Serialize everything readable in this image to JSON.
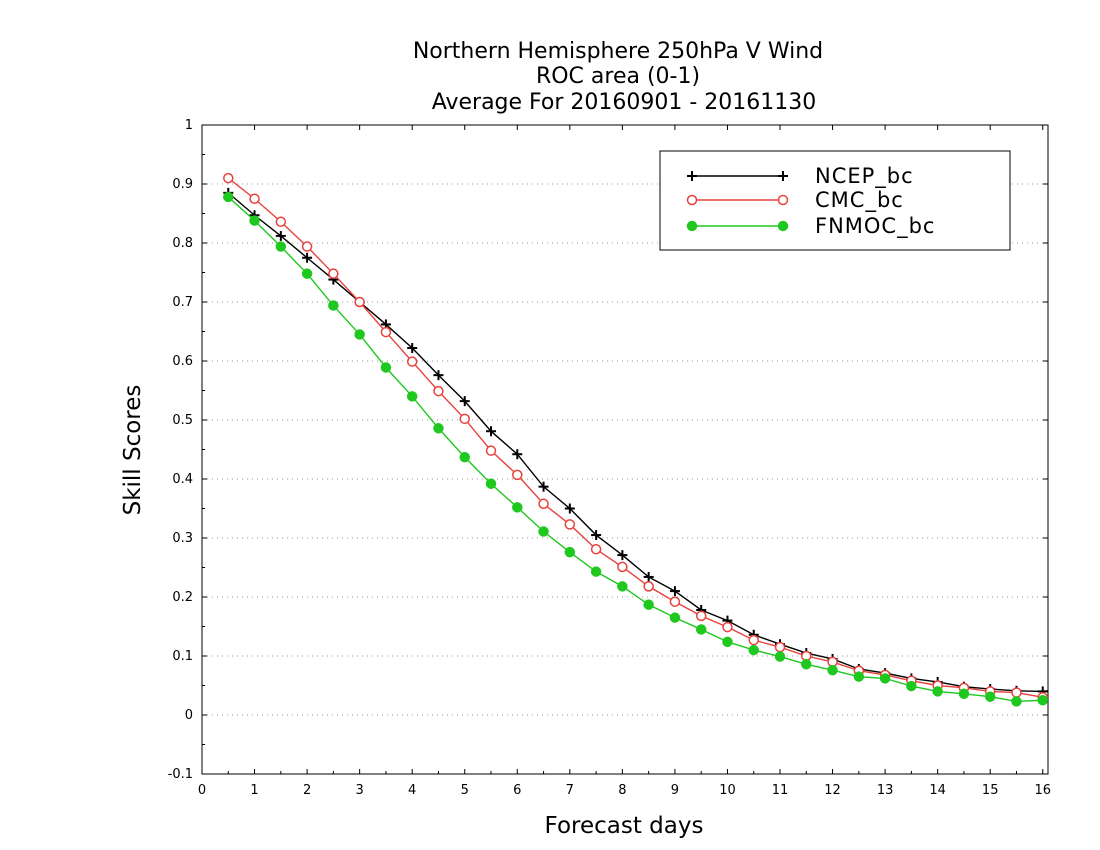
{
  "chart_data": {
    "type": "line",
    "title": [
      "Northern Hemisphere 250hPa V Wind",
      "ROC area (0-1)",
      "Average For 20160901 - 20161130"
    ],
    "xlabel": "Forecast days",
    "ylabel": "Skill Scores",
    "xlim": [
      0,
      16.1
    ],
    "ylim": [
      -0.1,
      1
    ],
    "xticks": [
      0,
      1,
      2,
      3,
      4,
      5,
      6,
      7,
      8,
      9,
      10,
      11,
      12,
      13,
      14,
      15,
      16
    ],
    "yticks": [
      -0.1,
      0,
      0.1,
      0.2,
      0.3,
      0.4,
      0.5,
      0.6,
      0.7,
      0.8,
      0.9,
      1
    ],
    "ytick_labels": [
      "-0.1",
      "0",
      "0.1",
      "0.2",
      "0.3",
      "0.4",
      "0.5",
      "0.6",
      "0.7",
      "0.8",
      "0.9",
      "1"
    ],
    "grid": "horizontal dotted",
    "legend_position": "top-right",
    "x": [
      0.5,
      1,
      1.5,
      2,
      2.5,
      3,
      3.5,
      4,
      4.5,
      5,
      5.5,
      6,
      6.5,
      7,
      7.5,
      8,
      8.5,
      9,
      9.5,
      10,
      10.5,
      11,
      11.5,
      12,
      12.5,
      13,
      13.5,
      14,
      14.5,
      15,
      15.5,
      16
    ],
    "series": [
      {
        "name": "NCEP_bc",
        "color": "#000000",
        "marker": "plus",
        "values": [
          0.885,
          0.847,
          0.812,
          0.775,
          0.738,
          0.7,
          0.662,
          0.622,
          0.576,
          0.532,
          0.481,
          0.442,
          0.387,
          0.35,
          0.305,
          0.271,
          0.234,
          0.21,
          0.178,
          0.16,
          0.136,
          0.12,
          0.105,
          0.095,
          0.078,
          0.071,
          0.062,
          0.056,
          0.048,
          0.044,
          0.041,
          0.04
        ]
      },
      {
        "name": "CMC_bc",
        "color": "#e8413c",
        "marker": "open-circle",
        "values": [
          0.91,
          0.875,
          0.836,
          0.794,
          0.748,
          0.7,
          0.649,
          0.599,
          0.549,
          0.502,
          0.448,
          0.407,
          0.358,
          0.323,
          0.281,
          0.251,
          0.218,
          0.192,
          0.168,
          0.149,
          0.127,
          0.115,
          0.1,
          0.09,
          0.075,
          0.068,
          0.058,
          0.05,
          0.046,
          0.04,
          0.038,
          0.03
        ]
      },
      {
        "name": "FNMOC_bc",
        "color": "#1ec81e",
        "marker": "filled-circle",
        "values": [
          0.878,
          0.838,
          0.794,
          0.748,
          0.694,
          0.645,
          0.589,
          0.54,
          0.486,
          0.437,
          0.392,
          0.352,
          0.311,
          0.276,
          0.243,
          0.218,
          0.187,
          0.165,
          0.145,
          0.124,
          0.11,
          0.099,
          0.086,
          0.076,
          0.065,
          0.062,
          0.049,
          0.04,
          0.036,
          0.031,
          0.023,
          0.025
        ]
      }
    ]
  }
}
